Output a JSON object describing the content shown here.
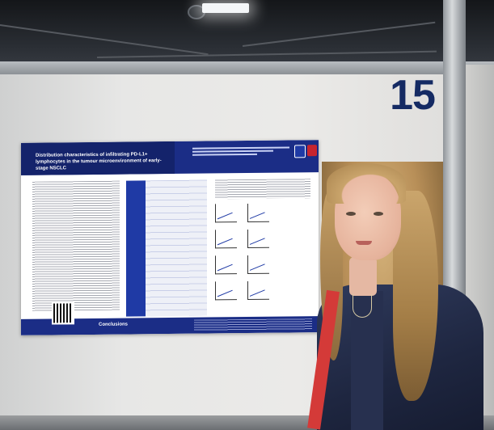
{
  "booth": {
    "number": "15"
  },
  "poster": {
    "title": "Distribution characteristics of infiltrating PD-L1+ lymphocytes in the tumour microenvironment of early-stage NSCLC",
    "conclusions_label": "Conclusions"
  },
  "colors": {
    "poster_header": "#1b2d86",
    "booth_number": "#142a63",
    "lanyard": "#d43a38",
    "wall": "#e7e7e6"
  }
}
